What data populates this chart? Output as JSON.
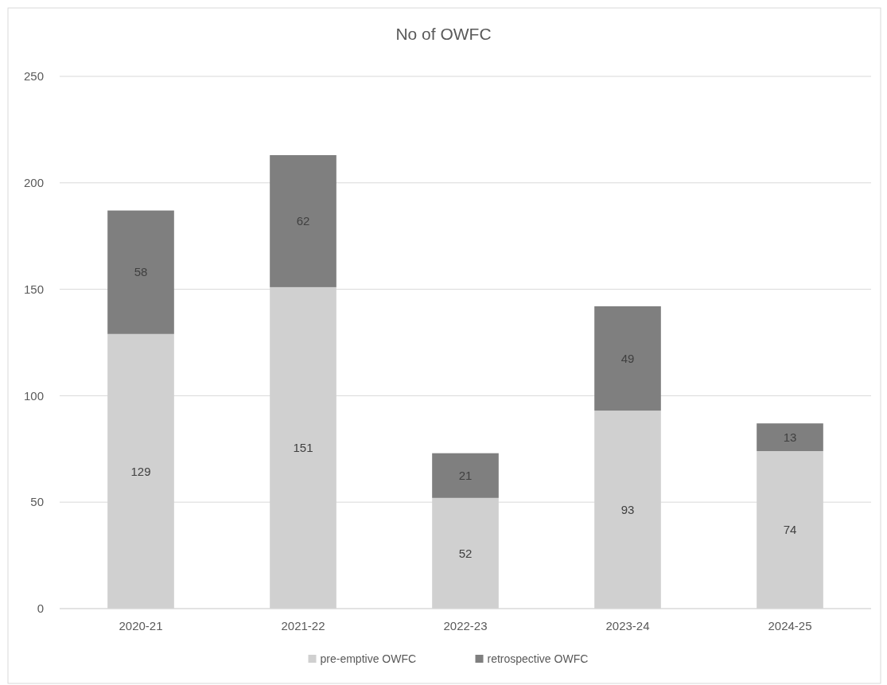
{
  "chart_data": {
    "type": "bar",
    "title": "No of OWFC",
    "categories": [
      "2020-21",
      "2021-22",
      "2022-23",
      "2023-24",
      "2024-25"
    ],
    "series": [
      {
        "name": "pre-emptive OWFC",
        "color": "#d0d0d0",
        "values": [
          129,
          151,
          52,
          93,
          74
        ]
      },
      {
        "name": "retrospective OWFC",
        "color": "#7f7f7f",
        "values": [
          58,
          62,
          21,
          49,
          13
        ]
      }
    ],
    "stacked": true,
    "ylim": [
      0,
      250
    ],
    "yticks": [
      0,
      50,
      100,
      150,
      200,
      250
    ],
    "grid": "y",
    "legend": "bottom",
    "data_labels": true
  }
}
